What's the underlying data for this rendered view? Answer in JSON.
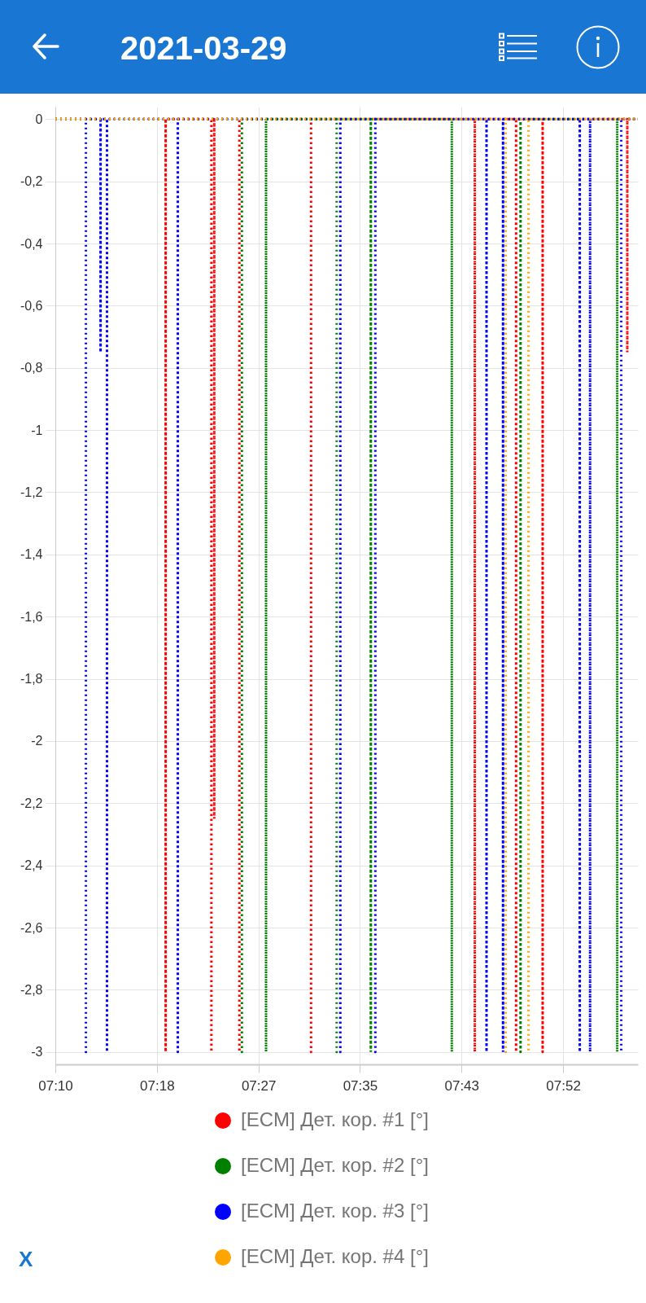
{
  "chart_data": {
    "type": "line",
    "title": "2021-03-29",
    "annotations": [
      "X"
    ],
    "xlim": [
      7.1658,
      7.9642
    ],
    "xticks": [
      {
        "value": 7.1658,
        "label": "07:10"
      },
      {
        "value": 7.305,
        "label": "07:18"
      },
      {
        "value": 7.4442,
        "label": "07:27"
      },
      {
        "value": 7.5833,
        "label": "07:35"
      },
      {
        "value": 7.7225,
        "label": "07:43"
      },
      {
        "value": 7.8617,
        "label": "07:52"
      }
    ],
    "ylim": [
      -3.04,
      0.04
    ],
    "yticks": [
      0,
      {
        "value": -0.2,
        "label": "-0,2"
      },
      {
        "value": -0.4,
        "label": "-0,4"
      },
      {
        "value": -0.6,
        "label": "-0,6"
      },
      {
        "value": -0.8,
        "label": "-0,8"
      },
      -1,
      {
        "value": -1.2,
        "label": "-1,2"
      },
      {
        "value": -1.4,
        "label": "-1,4"
      },
      {
        "value": -1.6,
        "label": "-1,6"
      },
      {
        "value": -1.8,
        "label": "-1,8"
      },
      -2,
      {
        "value": -2.2,
        "label": "-2,2"
      },
      {
        "value": -2.4,
        "label": "-2,4"
      },
      {
        "value": -2.6,
        "label": "-2,6"
      },
      {
        "value": -2.8,
        "label": "-2,8"
      },
      -3
    ],
    "grid": true,
    "legend": "bottom",
    "line_style": "dotted",
    "marker": "none",
    "series": [
      {
        "name": "[ECM] Дет. кор. #1 [°]",
        "color": "#ff0000",
        "x": [
          7.1658,
          7.317,
          7.317,
          7.317,
          7.3797,
          7.3797,
          7.3797,
          7.3836,
          7.3836,
          7.3836,
          7.4181,
          7.4181,
          7.4181,
          7.5163,
          7.5163,
          7.5163,
          7.7407,
          7.7407,
          7.7407,
          7.7973,
          7.7973,
          7.7973,
          7.8337,
          7.8337,
          7.8337,
          7.9497,
          7.9497,
          7.9497,
          7.9642
        ],
        "values": [
          0,
          0,
          -3,
          0,
          0,
          -3,
          0,
          0,
          -2.25,
          0,
          0,
          -3,
          0,
          0,
          -3,
          0,
          0,
          -3,
          0,
          0,
          -3,
          0,
          0,
          -3,
          0,
          0,
          -0.75,
          0,
          0
        ]
      },
      {
        "name": "[ECM] Дет. кор. #2 [°]",
        "color": "#008000",
        "x": [
          7.1658,
          7.4215,
          7.4215,
          7.4215,
          7.4546,
          7.4546,
          7.4546,
          7.5514,
          7.5514,
          7.5514,
          7.5982,
          7.5982,
          7.5982,
          7.7092,
          7.7092,
          7.7092,
          7.8034,
          7.8034,
          7.8034,
          7.9359,
          7.9359,
          7.9359,
          7.9642
        ],
        "values": [
          0,
          0,
          -3,
          0,
          0,
          -3,
          0,
          0,
          -3,
          0,
          0,
          -3,
          0,
          0,
          -3,
          0,
          0,
          -3,
          0,
          0,
          -3,
          0,
          0
        ]
      },
      {
        "name": "[ECM] Дет. кор. #3 [°]",
        "color": "#0000ff",
        "x": [
          7.1658,
          7.2077,
          7.2077,
          7.2077,
          7.2278,
          7.2278,
          7.2278,
          7.2366,
          7.2366,
          7.2366,
          7.3337,
          7.3337,
          7.3337,
          7.5564,
          7.5564,
          7.5564,
          7.6044,
          7.6044,
          7.6044,
          7.7568,
          7.7568,
          7.7568,
          7.7794,
          7.7794,
          7.7794,
          7.8846,
          7.8846,
          7.8846,
          7.8987,
          7.8987,
          7.8987,
          7.9414,
          7.9414,
          7.9414,
          7.9642
        ],
        "values": [
          0,
          0,
          -3,
          0,
          0,
          -0.75,
          0,
          0,
          -3,
          0,
          0,
          -3,
          0,
          0,
          -3,
          0,
          0,
          -3,
          0,
          0,
          -3,
          0,
          0,
          -3,
          0,
          0,
          -3,
          0,
          0,
          -3,
          0,
          0,
          -3,
          0,
          0
        ]
      },
      {
        "name": "[ECM] Дет. кор. #4 [°]",
        "color": "#ffa500",
        "x": [
          7.1658,
          7.7831,
          7.7831,
          7.7831,
          7.8143,
          7.8143,
          7.8143,
          7.9642
        ],
        "values": [
          0,
          0,
          -3,
          0,
          0,
          -3,
          0,
          0
        ]
      }
    ]
  }
}
